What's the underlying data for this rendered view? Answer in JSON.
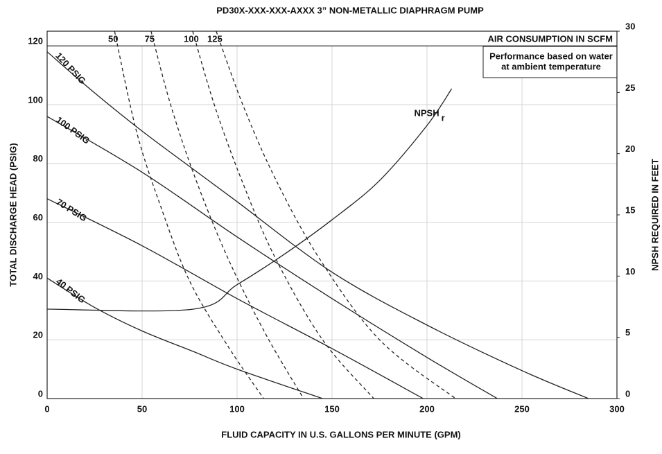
{
  "chart_data": {
    "type": "line",
    "title": "PD30X-XXX-XXX-AXXX 3” NON-METALLIC DIAPHRAGM PUMP",
    "x_label": "FLUID CAPACITY IN U.S. GALLONS PER MINUTE (GPM)",
    "y_label": "TOTAL DISCHARGE HEAD (PSIG)",
    "y2_label": "NPSH REQUIRED IN FEET",
    "top_label": "AIR CONSUMPTION IN SCFM",
    "note": [
      "Performance based on water",
      "at ambient temperature"
    ],
    "xlim": [
      0,
      300
    ],
    "xticks": [
      0,
      50,
      100,
      150,
      200,
      250,
      300
    ],
    "ylim": [
      0,
      125
    ],
    "yticks": [
      0,
      20,
      40,
      60,
      80,
      100,
      120
    ],
    "y2lim": [
      0,
      30
    ],
    "y2ticks": [
      0,
      5,
      10,
      15,
      20,
      25,
      30
    ],
    "grid": true,
    "series": [
      {
        "name": "120 PSIG",
        "color": "#222222",
        "style": "solid",
        "x": [
          0,
          25,
          50,
          77,
          100,
          150,
          200,
          250,
          285
        ],
        "values": [
          118,
          104,
          91,
          78,
          67,
          43,
          25,
          9.5,
          0
        ]
      },
      {
        "name": "100 PSIG",
        "color": "#222222",
        "style": "solid",
        "x": [
          0,
          50,
          100,
          150,
          200,
          237
        ],
        "values": [
          96,
          77,
          55,
          34,
          14,
          0
        ]
      },
      {
        "name": "70 PSIG",
        "color": "#222222",
        "style": "solid",
        "x": [
          0,
          50,
          100,
          150,
          198
        ],
        "values": [
          68,
          52,
          34,
          17,
          0
        ]
      },
      {
        "name": "40 PSIG",
        "color": "#222222",
        "style": "solid",
        "x": [
          0,
          25,
          50,
          77,
          100,
          145
        ],
        "values": [
          41,
          31,
          23,
          16,
          10,
          0
        ]
      },
      {
        "name": "50",
        "color": "#222222",
        "style": "dashed",
        "x": [
          35.5,
          47,
          60,
          75,
          95,
          114
        ],
        "values": [
          125,
          91,
          65,
          40,
          18,
          0
        ]
      },
      {
        "name": "75",
        "color": "#222222",
        "style": "dashed",
        "x": [
          54.7,
          65,
          78,
          95,
          115,
          135
        ],
        "values": [
          125,
          100,
          75,
          48,
          22,
          0
        ]
      },
      {
        "name": "100",
        "color": "#222222",
        "style": "dashed",
        "x": [
          76.6,
          88,
          102,
          120,
          145,
          172
        ],
        "values": [
          125,
          100,
          75,
          48,
          20,
          0
        ]
      },
      {
        "name": "125",
        "color": "#222222",
        "style": "dashed",
        "x": [
          89,
          103,
          120,
          143,
          175,
          215
        ],
        "values": [
          125,
          100,
          75,
          48,
          20,
          0
        ]
      },
      {
        "name": "NPSH",
        "subscript": "r",
        "color": "#222222",
        "style": "solid",
        "axis": "y2",
        "x": [
          0,
          77,
          100,
          125,
          150,
          175,
          200,
          213
        ],
        "values": [
          7.3,
          7.3,
          9.3,
          11.8,
          14.6,
          17.8,
          22.3,
          25.3
        ]
      }
    ]
  }
}
